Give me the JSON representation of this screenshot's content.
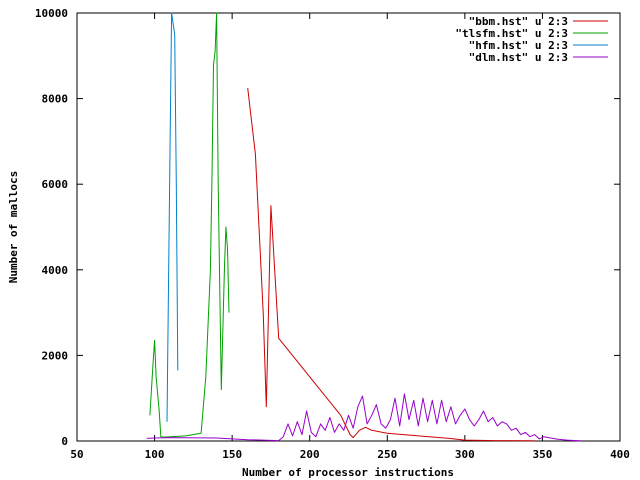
{
  "chart_data": {
    "type": "line",
    "title": "",
    "xlabel": "Number of processor instructions",
    "ylabel": "Number of mallocs",
    "xlim": [
      50,
      400
    ],
    "ylim": [
      0,
      10000
    ],
    "xticks": [
      50,
      100,
      150,
      200,
      250,
      300,
      350,
      400
    ],
    "yticks": [
      0,
      2000,
      4000,
      6000,
      8000,
      10000
    ],
    "grid": false,
    "legend_position": "top-right",
    "series": [
      {
        "name": "\"bbm.hst\" u 2:3",
        "color": "#cc0000",
        "points": [
          [
            160,
            8250
          ],
          [
            165,
            6700
          ],
          [
            170,
            3000
          ],
          [
            172,
            800
          ],
          [
            175,
            5500
          ],
          [
            180,
            2400
          ],
          [
            200,
            1500
          ],
          [
            220,
            600
          ],
          [
            226,
            150
          ],
          [
            228,
            80
          ],
          [
            232,
            250
          ],
          [
            236,
            320
          ],
          [
            240,
            250
          ],
          [
            250,
            180
          ],
          [
            270,
            120
          ],
          [
            290,
            60
          ],
          [
            300,
            20
          ],
          [
            320,
            10
          ],
          [
            345,
            5
          ]
        ]
      },
      {
        "name": "\"tlsfm.hst\" u 2:3",
        "color": "#00a000",
        "points": [
          [
            97,
            600
          ],
          [
            99,
            1800
          ],
          [
            100,
            2350
          ],
          [
            101,
            1500
          ],
          [
            103,
            700
          ],
          [
            104,
            100
          ],
          [
            106,
            90
          ],
          [
            120,
            120
          ],
          [
            130,
            180
          ],
          [
            133,
            1500
          ],
          [
            136,
            4000
          ],
          [
            137,
            6200
          ],
          [
            138,
            8800
          ],
          [
            139,
            9100
          ],
          [
            140,
            10000
          ],
          [
            141,
            6000
          ],
          [
            143,
            1200
          ],
          [
            145,
            4000
          ],
          [
            146,
            5000
          ],
          [
            147,
            4500
          ],
          [
            148,
            3000
          ]
        ]
      },
      {
        "name": "\"hfm.hst\" u 2:3",
        "color": "#0080cc",
        "points": [
          [
            108,
            450
          ],
          [
            110,
            7000
          ],
          [
            111,
            10000
          ],
          [
            113,
            9500
          ],
          [
            114,
            6000
          ],
          [
            115,
            1650
          ]
        ]
      },
      {
        "name": "\"dlm.hst\" u 2:3",
        "color": "#9900cc",
        "points": [
          [
            95,
            60
          ],
          [
            100,
            70
          ],
          [
            110,
            80
          ],
          [
            120,
            75
          ],
          [
            140,
            70
          ],
          [
            150,
            50
          ],
          [
            160,
            30
          ],
          [
            170,
            20
          ],
          [
            180,
            10
          ],
          [
            183,
            100
          ],
          [
            186,
            400
          ],
          [
            189,
            120
          ],
          [
            192,
            450
          ],
          [
            195,
            150
          ],
          [
            198,
            700
          ],
          [
            201,
            200
          ],
          [
            204,
            100
          ],
          [
            207,
            400
          ],
          [
            210,
            250
          ],
          [
            213,
            550
          ],
          [
            216,
            200
          ],
          [
            219,
            400
          ],
          [
            222,
            250
          ],
          [
            225,
            600
          ],
          [
            228,
            300
          ],
          [
            231,
            800
          ],
          [
            234,
            1050
          ],
          [
            237,
            400
          ],
          [
            240,
            600
          ],
          [
            243,
            850
          ],
          [
            246,
            400
          ],
          [
            249,
            300
          ],
          [
            252,
            500
          ],
          [
            255,
            1000
          ],
          [
            258,
            350
          ],
          [
            261,
            1100
          ],
          [
            264,
            500
          ],
          [
            267,
            950
          ],
          [
            270,
            350
          ],
          [
            273,
            1000
          ],
          [
            276,
            450
          ],
          [
            279,
            950
          ],
          [
            282,
            400
          ],
          [
            285,
            950
          ],
          [
            288,
            450
          ],
          [
            291,
            800
          ],
          [
            294,
            400
          ],
          [
            297,
            600
          ],
          [
            300,
            750
          ],
          [
            303,
            500
          ],
          [
            306,
            350
          ],
          [
            309,
            500
          ],
          [
            312,
            700
          ],
          [
            315,
            450
          ],
          [
            318,
            550
          ],
          [
            321,
            350
          ],
          [
            324,
            450
          ],
          [
            327,
            400
          ],
          [
            330,
            250
          ],
          [
            333,
            300
          ],
          [
            336,
            150
          ],
          [
            339,
            200
          ],
          [
            342,
            100
          ],
          [
            345,
            150
          ],
          [
            348,
            50
          ],
          [
            351,
            100
          ],
          [
            354,
            80
          ],
          [
            360,
            40
          ],
          [
            366,
            20
          ],
          [
            372,
            10
          ],
          [
            375,
            5
          ]
        ]
      }
    ]
  }
}
